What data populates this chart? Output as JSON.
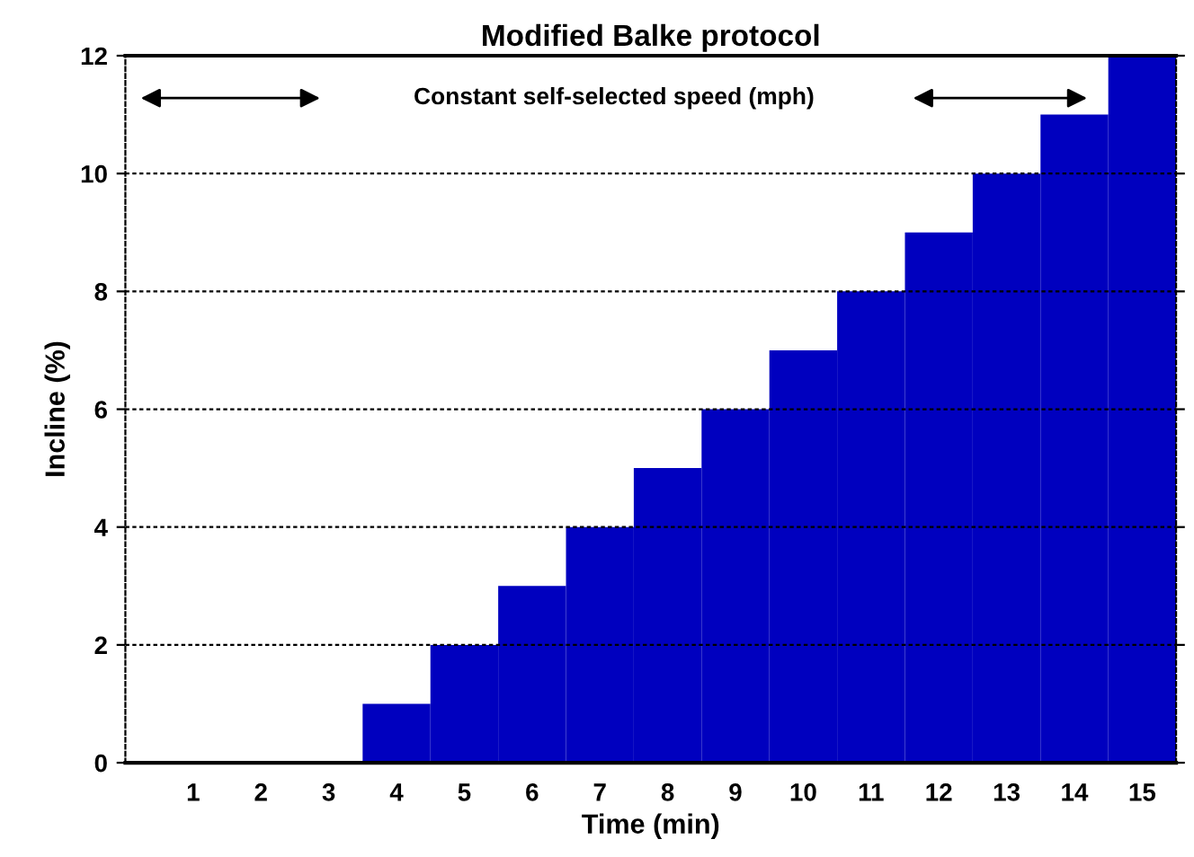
{
  "chart_data": {
    "type": "bar",
    "title": "Modified Balke protocol",
    "xlabel": "Time (min)",
    "ylabel": "Incline (%)",
    "annotations": [
      "Constant self-selected speed (mph)"
    ],
    "x": [
      1,
      2,
      3,
      4,
      5,
      6,
      7,
      8,
      9,
      10,
      11,
      12,
      13,
      14,
      15
    ],
    "series": [
      {
        "color": "#0000bf",
        "values": [
          0,
          0,
          0,
          1,
          2,
          3,
          4,
          5,
          6,
          7,
          8,
          9,
          10,
          11,
          12
        ]
      }
    ],
    "xlim": [
      0,
      15.5
    ],
    "xticks": [
      1,
      2,
      3,
      4,
      5,
      6,
      7,
      8,
      9,
      10,
      11,
      12,
      13,
      14,
      15
    ],
    "ylim": [
      0,
      12
    ],
    "yticks": [
      0,
      2,
      4,
      6,
      8,
      10,
      12
    ],
    "grid": "y"
  }
}
